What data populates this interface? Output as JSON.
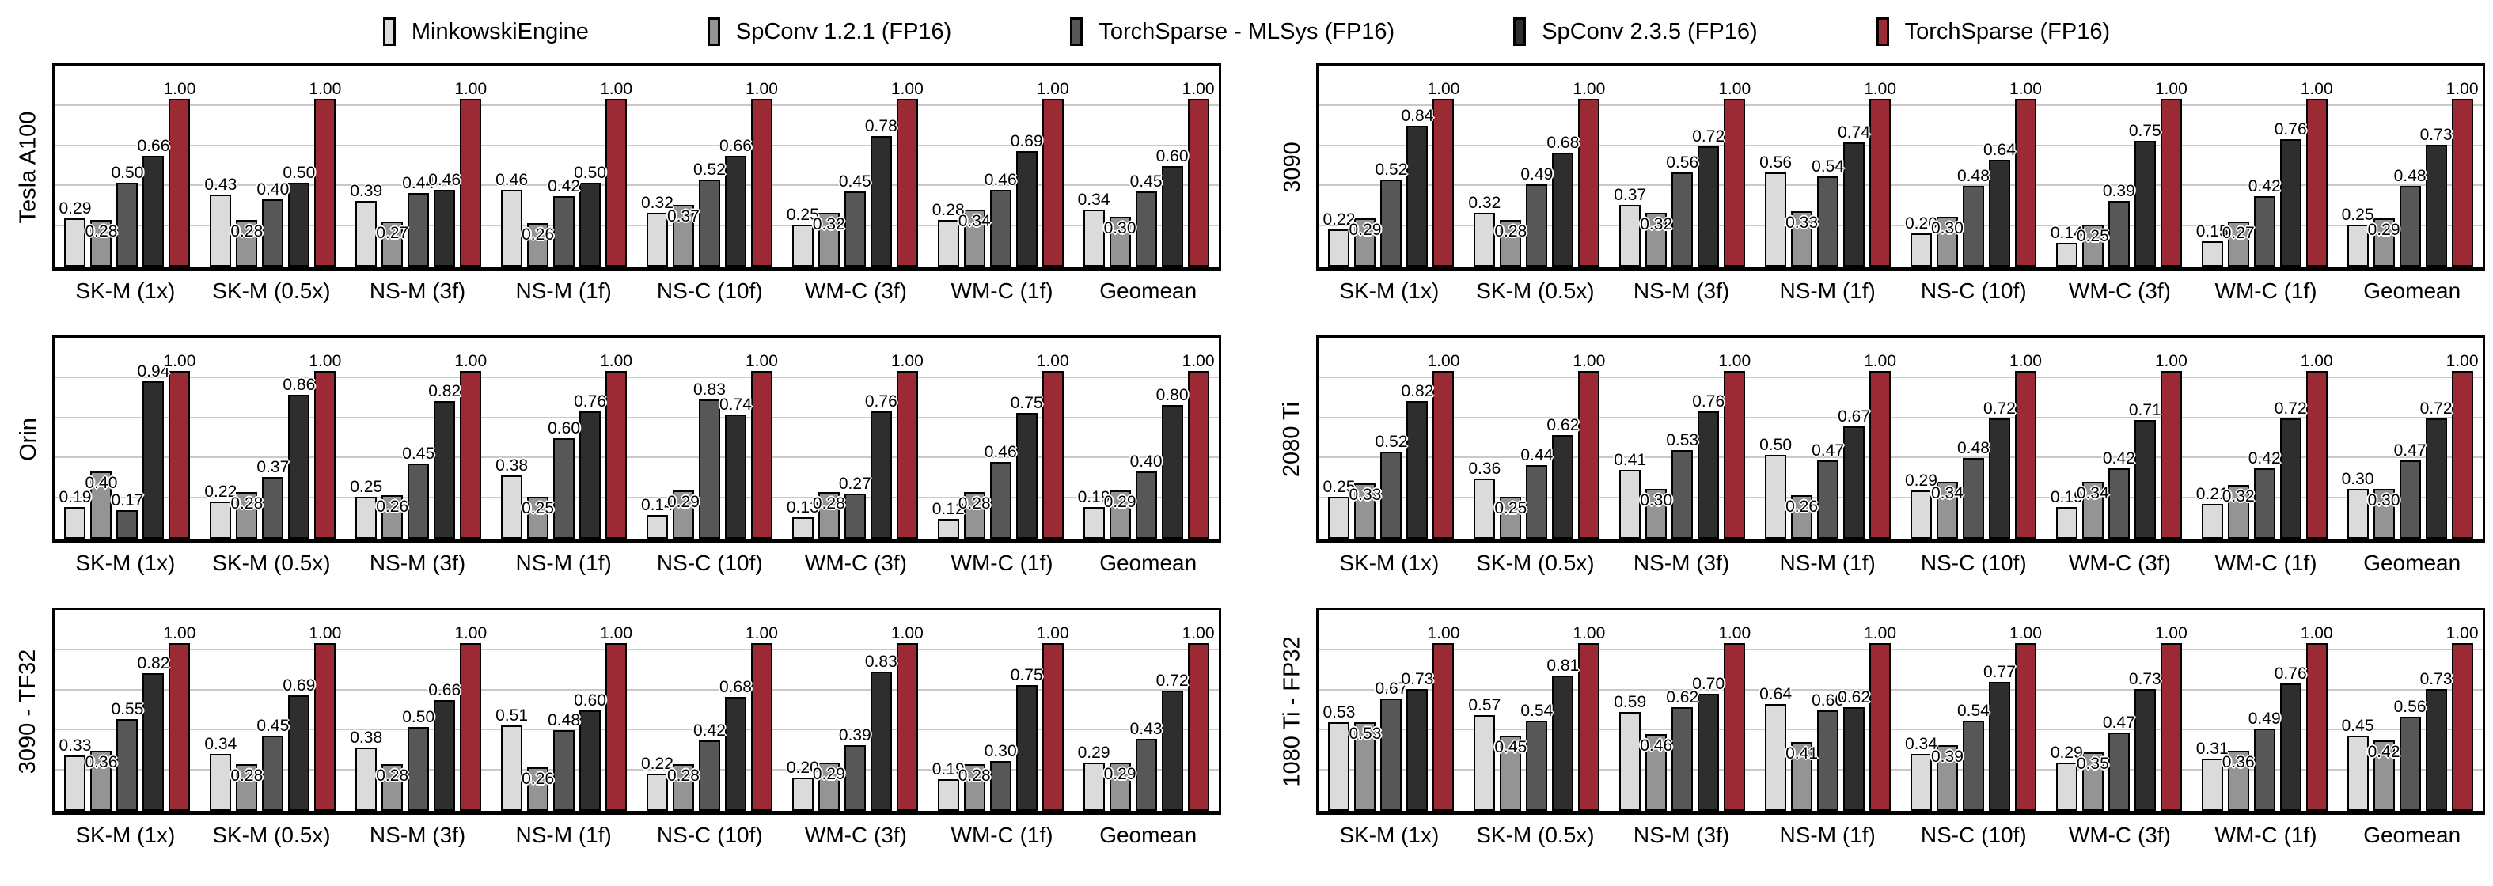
{
  "legend": {
    "items": [
      {
        "label": "MinkowskiEngine",
        "color": "#dbdbdb"
      },
      {
        "label": "SpConv 1.2.1 (FP16)",
        "color": "#949494"
      },
      {
        "label": "TorchSparse - MLSys (FP16)",
        "color": "#575757"
      },
      {
        "label": "SpConv 2.3.5 (FP16)",
        "color": "#2e2e2e"
      },
      {
        "label": "TorchSparse (FP16)",
        "color": "#9b2a35"
      }
    ]
  },
  "style_colors": {
    "bar_border": "#000000",
    "gridline": "#c9c9c9"
  },
  "chart_data": [
    {
      "type": "bar",
      "title": "Tesla A100",
      "categories": [
        "SK-M (1x)",
        "SK-M (0.5x)",
        "NS-M (3f)",
        "NS-M (1f)",
        "NS-C (10f)",
        "WM-C (3f)",
        "WM-C (1f)",
        "Geomean"
      ],
      "series": [
        {
          "name": "MinkowskiEngine",
          "values": [
            0.29,
            0.43,
            0.39,
            0.46,
            0.32,
            0.25,
            0.28,
            0.34
          ]
        },
        {
          "name": "SpConv 1.2.1 (FP16)",
          "values": [
            0.28,
            0.28,
            0.27,
            0.26,
            0.37,
            0.32,
            0.34,
            0.3
          ]
        },
        {
          "name": "TorchSparse - MLSys (FP16)",
          "values": [
            0.5,
            0.4,
            0.44,
            0.42,
            0.52,
            0.45,
            0.46,
            0.45
          ]
        },
        {
          "name": "SpConv 2.3.5 (FP16)",
          "values": [
            0.66,
            0.5,
            0.46,
            0.5,
            0.66,
            0.78,
            0.69,
            0.6
          ]
        },
        {
          "name": "TorchSparse (FP16)",
          "values": [
            1.0,
            1.0,
            1.0,
            1.0,
            1.0,
            1.0,
            1.0,
            1.0
          ]
        }
      ],
      "ylim": [
        0,
        1.2
      ],
      "gridline_values": [
        0.24,
        0.48,
        0.72,
        0.96
      ],
      "legend_position": "figure-top",
      "grid": true
    },
    {
      "type": "bar",
      "title": "3090",
      "categories": [
        "SK-M (1x)",
        "SK-M (0.5x)",
        "NS-M (3f)",
        "NS-M (1f)",
        "NS-C (10f)",
        "WM-C (3f)",
        "WM-C (1f)",
        "Geomean"
      ],
      "series": [
        {
          "name": "MinkowskiEngine",
          "values": [
            0.22,
            0.32,
            0.37,
            0.56,
            0.2,
            0.14,
            0.15,
            0.25
          ]
        },
        {
          "name": "SpConv 1.2.1 (FP16)",
          "values": [
            0.29,
            0.28,
            0.32,
            0.33,
            0.3,
            0.25,
            0.27,
            0.29
          ]
        },
        {
          "name": "TorchSparse - MLSys (FP16)",
          "values": [
            0.52,
            0.49,
            0.56,
            0.54,
            0.48,
            0.39,
            0.42,
            0.48
          ]
        },
        {
          "name": "SpConv 2.3.5 (FP16)",
          "values": [
            0.84,
            0.68,
            0.72,
            0.74,
            0.64,
            0.75,
            0.76,
            0.73
          ]
        },
        {
          "name": "TorchSparse (FP16)",
          "values": [
            1.0,
            1.0,
            1.0,
            1.0,
            1.0,
            1.0,
            1.0,
            1.0
          ]
        }
      ],
      "ylim": [
        0,
        1.2
      ],
      "gridline_values": [
        0.24,
        0.48,
        0.72,
        0.96
      ],
      "legend_position": "figure-top",
      "grid": true
    },
    {
      "type": "bar",
      "title": "Orin",
      "categories": [
        "SK-M (1x)",
        "SK-M (0.5x)",
        "NS-M (3f)",
        "NS-M (1f)",
        "NS-C (10f)",
        "WM-C (3f)",
        "WM-C (1f)",
        "Geomean"
      ],
      "series": [
        {
          "name": "MinkowskiEngine",
          "values": [
            0.19,
            0.22,
            0.25,
            0.38,
            0.14,
            0.13,
            0.12,
            0.19
          ]
        },
        {
          "name": "SpConv 1.2.1 (FP16)",
          "values": [
            0.4,
            0.28,
            0.26,
            0.25,
            0.29,
            0.28,
            0.28,
            0.29
          ]
        },
        {
          "name": "TorchSparse - MLSys (FP16)",
          "values": [
            0.17,
            0.37,
            0.45,
            0.6,
            0.83,
            0.27,
            0.46,
            0.4
          ]
        },
        {
          "name": "SpConv 2.3.5 (FP16)",
          "values": [
            0.94,
            0.86,
            0.82,
            0.76,
            0.74,
            0.76,
            0.75,
            0.8
          ]
        },
        {
          "name": "TorchSparse (FP16)",
          "values": [
            1.0,
            1.0,
            1.0,
            1.0,
            1.0,
            1.0,
            1.0,
            1.0
          ]
        }
      ],
      "ylim": [
        0,
        1.2
      ],
      "gridline_values": [
        0.24,
        0.48,
        0.72,
        0.96
      ],
      "legend_position": "figure-top",
      "grid": true
    },
    {
      "type": "bar",
      "title": "2080 Ti",
      "categories": [
        "SK-M (1x)",
        "SK-M (0.5x)",
        "NS-M (3f)",
        "NS-M (1f)",
        "NS-C (10f)",
        "WM-C (3f)",
        "WM-C (1f)",
        "Geomean"
      ],
      "series": [
        {
          "name": "MinkowskiEngine",
          "values": [
            0.25,
            0.36,
            0.41,
            0.5,
            0.29,
            0.19,
            0.21,
            0.3
          ]
        },
        {
          "name": "SpConv 1.2.1 (FP16)",
          "values": [
            0.33,
            0.25,
            0.3,
            0.26,
            0.34,
            0.34,
            0.32,
            0.3
          ]
        },
        {
          "name": "TorchSparse - MLSys (FP16)",
          "values": [
            0.52,
            0.44,
            0.53,
            0.47,
            0.48,
            0.42,
            0.42,
            0.47
          ]
        },
        {
          "name": "SpConv 2.3.5 (FP16)",
          "values": [
            0.82,
            0.62,
            0.76,
            0.67,
            0.72,
            0.71,
            0.72,
            0.72
          ]
        },
        {
          "name": "TorchSparse (FP16)",
          "values": [
            1.0,
            1.0,
            1.0,
            1.0,
            1.0,
            1.0,
            1.0,
            1.0
          ]
        }
      ],
      "ylim": [
        0,
        1.2
      ],
      "gridline_values": [
        0.24,
        0.48,
        0.72,
        0.96
      ],
      "legend_position": "figure-top",
      "grid": true
    },
    {
      "type": "bar",
      "title": "3090 - TF32",
      "categories": [
        "SK-M (1x)",
        "SK-M (0.5x)",
        "NS-M (3f)",
        "NS-M (1f)",
        "NS-C (10f)",
        "WM-C (3f)",
        "WM-C (1f)",
        "Geomean"
      ],
      "series": [
        {
          "name": "MinkowskiEngine",
          "values": [
            0.33,
            0.34,
            0.38,
            0.51,
            0.22,
            0.2,
            0.19,
            0.29
          ]
        },
        {
          "name": "SpConv 1.2.1 (FP16)",
          "values": [
            0.36,
            0.28,
            0.28,
            0.26,
            0.28,
            0.29,
            0.28,
            0.29
          ]
        },
        {
          "name": "TorchSparse - MLSys (FP16)",
          "values": [
            0.55,
            0.45,
            0.5,
            0.48,
            0.42,
            0.39,
            0.3,
            0.43
          ]
        },
        {
          "name": "SpConv 2.3.5 (FP16)",
          "values": [
            0.82,
            0.69,
            0.66,
            0.6,
            0.68,
            0.83,
            0.75,
            0.72
          ]
        },
        {
          "name": "TorchSparse (FP16)",
          "values": [
            1.0,
            1.0,
            1.0,
            1.0,
            1.0,
            1.0,
            1.0,
            1.0
          ]
        }
      ],
      "ylim": [
        0,
        1.2
      ],
      "gridline_values": [
        0.24,
        0.48,
        0.72,
        0.96
      ],
      "legend_position": "figure-top",
      "grid": true
    },
    {
      "type": "bar",
      "title": "1080 Ti - FP32",
      "categories": [
        "SK-M (1x)",
        "SK-M (0.5x)",
        "NS-M (3f)",
        "NS-M (1f)",
        "NS-C (10f)",
        "WM-C (3f)",
        "WM-C (1f)",
        "Geomean"
      ],
      "series": [
        {
          "name": "MinkowskiEngine",
          "values": [
            0.53,
            0.57,
            0.59,
            0.64,
            0.34,
            0.29,
            0.31,
            0.45
          ]
        },
        {
          "name": "SpConv 1.2.1 (FP16)",
          "values": [
            0.53,
            0.45,
            0.46,
            0.41,
            0.39,
            0.35,
            0.36,
            0.42
          ]
        },
        {
          "name": "TorchSparse - MLSys (FP16)",
          "values": [
            0.67,
            0.54,
            0.62,
            0.6,
            0.54,
            0.47,
            0.49,
            0.56
          ]
        },
        {
          "name": "SpConv 2.3.5 (FP16)",
          "values": [
            0.73,
            0.81,
            0.7,
            0.62,
            0.77,
            0.73,
            0.76,
            0.73
          ]
        },
        {
          "name": "TorchSparse (FP16)",
          "values": [
            1.0,
            1.0,
            1.0,
            1.0,
            1.0,
            1.0,
            1.0,
            1.0
          ]
        }
      ],
      "ylim": [
        0,
        1.2
      ],
      "gridline_values": [
        0.24,
        0.48,
        0.72,
        0.96
      ],
      "legend_position": "figure-top",
      "grid": true
    }
  ]
}
